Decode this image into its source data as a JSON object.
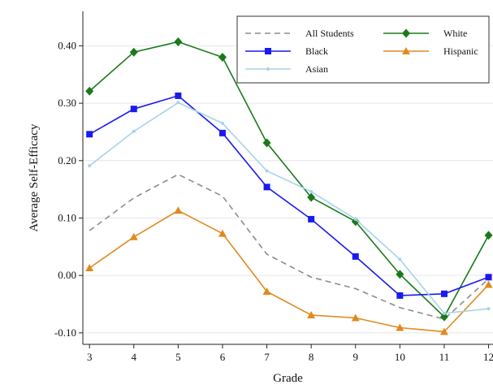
{
  "chart_data": {
    "type": "line",
    "title": "",
    "xlabel": "Grade",
    "ylabel": "Average Self-Efficacy",
    "x": [
      3,
      4,
      5,
      6,
      7,
      8,
      9,
      10,
      11,
      12
    ],
    "x_ticks": [
      "3",
      "4",
      "5",
      "6",
      "7",
      "8",
      "9",
      "10",
      "11",
      "12"
    ],
    "ylim": [
      -0.12,
      0.46
    ],
    "y_ticks": [
      -0.1,
      0.0,
      0.1,
      0.2,
      0.3,
      0.4
    ],
    "y_tick_labels": [
      "-0.10",
      "0.00",
      "0.10",
      "0.20",
      "0.30",
      "0.40"
    ],
    "grid": "horizontal",
    "legend_position": "top-right",
    "series": [
      {
        "name": "All Students",
        "color": "#8c8c8c",
        "marker": "none",
        "dash": "dashed",
        "values": [
          0.078,
          0.135,
          0.176,
          0.138,
          0.037,
          -0.003,
          -0.023,
          -0.056,
          -0.076,
          -0.006
        ]
      },
      {
        "name": "White",
        "color": "#1a7a1a",
        "marker": "diamond",
        "dash": "solid",
        "values": [
          0.321,
          0.389,
          0.407,
          0.38,
          0.231,
          0.136,
          0.094,
          0.002,
          -0.072,
          0.07
        ]
      },
      {
        "name": "Black",
        "color": "#1a1aee",
        "marker": "square",
        "dash": "solid",
        "values": [
          0.246,
          0.29,
          0.313,
          0.248,
          0.154,
          0.098,
          0.033,
          -0.035,
          -0.032,
          -0.003
        ]
      },
      {
        "name": "Hispanic",
        "color": "#e08a1e",
        "marker": "triangle",
        "dash": "solid",
        "values": [
          0.013,
          0.067,
          0.113,
          0.073,
          -0.028,
          -0.069,
          -0.074,
          -0.091,
          -0.098,
          -0.016
        ]
      },
      {
        "name": "Asian",
        "color": "#a6d3e8",
        "marker": "dot",
        "dash": "solid",
        "values": [
          0.191,
          0.251,
          0.301,
          0.265,
          0.182,
          0.146,
          0.098,
          0.028,
          -0.066,
          -0.058
        ]
      }
    ]
  }
}
